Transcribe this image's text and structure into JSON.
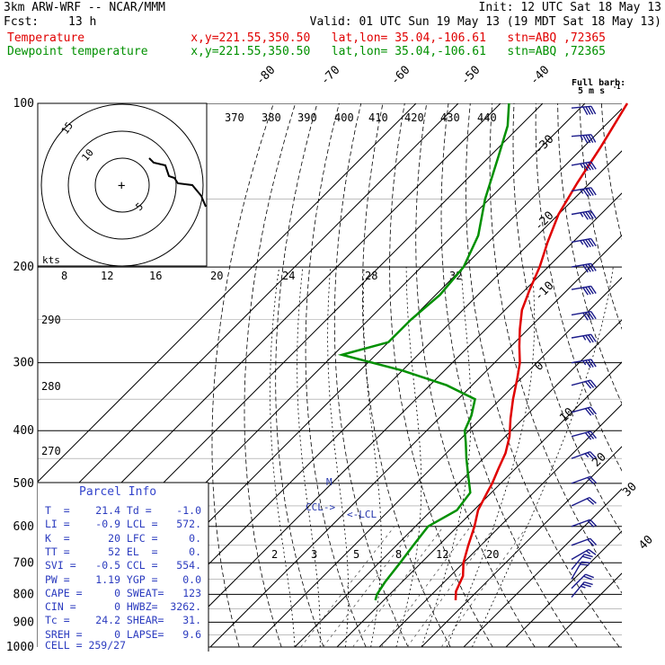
{
  "header": {
    "model": "3km ARW-WRF -- NCAR/MMM",
    "init": "Init: 12 UTC Sat 18 May 13",
    "fcst_label": "Fcst:",
    "fcst_value": "13 h",
    "valid": "Valid: 01 UTC Sun 19 May 13 (19 MDT Sat 18 May 13)",
    "temp_label": "Temperature",
    "temp_loc": "x,y=221.55,350.50   lat,lon= 35.04,-106.61   stn=ABQ ,72365",
    "dew_label": "Dewpoint temperature",
    "dew_loc": "x,y=221.55,350.50   lat,lon= 35.04,-106.61   stn=ABQ ,72365"
  },
  "legend_barb": {
    "title": "Full barb:",
    "value": "5 m s",
    "exponent": "-1"
  },
  "hodograph": {
    "unit_label": "kts",
    "ring_labels": [
      "5",
      "10",
      "15"
    ],
    "center_marker": "+",
    "points": [
      [
        0.8,
        -3.5
      ],
      [
        2.0,
        -1.5
      ],
      [
        2.5,
        3.0
      ],
      [
        5.0,
        2.0
      ],
      [
        4.2,
        8.0
      ],
      [
        3.0,
        7.5
      ],
      [
        2.5,
        12.0
      ]
    ]
  },
  "parcel_info": {
    "title": "Parcel Info",
    "rows": [
      [
        "T  =",
        "21.4",
        "Td =",
        "-1.0"
      ],
      [
        "LI =",
        "-0.9",
        "LCL =",
        "572."
      ],
      [
        "K  =",
        "20",
        "LFC =",
        "0."
      ],
      [
        "TT =",
        "52",
        "EL  =",
        "0."
      ],
      [
        "SVI =",
        "-0.5",
        "CCL =",
        "554."
      ],
      [
        "PW =",
        "1.19",
        "YGP =",
        "0.0"
      ],
      [
        "CAPE =",
        "0",
        "SWEAT=",
        "123"
      ],
      [
        "CIN =",
        "0",
        "HWBZ=",
        "3262."
      ],
      [
        "Tc =",
        "24.2",
        "SHEAR=",
        "31."
      ],
      [
        "SREH =",
        "0",
        "LAPSE=",
        "9.6"
      ]
    ],
    "cell": "CELL = 259/27"
  },
  "annotations": {
    "ccl": "CCL",
    "lcl": "LCL",
    "marker_m": "M"
  },
  "chart_data": {
    "type": "line",
    "chart_kind": "Skew-T log-P sounding",
    "y_axis": {
      "name": "pressure",
      "scale": "log",
      "ylim": [
        1000,
        100
      ]
    },
    "pressure_labels": [
      "100",
      "200",
      "300",
      "400",
      "500",
      "600",
      "700",
      "800",
      "900",
      "1000"
    ],
    "isotherm_labels": [
      "-80",
      "-70",
      "-60",
      "-50",
      "-40",
      "-30",
      "-20",
      "-10",
      "0",
      "10",
      "20",
      "30",
      "40"
    ],
    "theta_e_labels": [
      "370",
      "380",
      "390",
      "400",
      "410",
      "420",
      "430",
      "440"
    ],
    "theta_labels": [
      "290",
      "280",
      "270"
    ],
    "mixing_ratio_upper_labels": [
      "8",
      "12",
      "16",
      "20",
      "24",
      "28",
      "32"
    ],
    "mixing_ratio_lower_labels": [
      "2",
      "3",
      "5",
      "8",
      "12",
      "20"
    ],
    "series": [
      {
        "name": "Temperature",
        "color": "#e00000",
        "points": [
          [
            820,
            17
          ],
          [
            790,
            15
          ],
          [
            740,
            13
          ],
          [
            700,
            10
          ],
          [
            650,
            7
          ],
          [
            600,
            4
          ],
          [
            560,
            1
          ],
          [
            520,
            -1
          ],
          [
            500,
            -2
          ],
          [
            470,
            -4
          ],
          [
            440,
            -6
          ],
          [
            410,
            -9
          ],
          [
            380,
            -13
          ],
          [
            350,
            -17
          ],
          [
            320,
            -21
          ],
          [
            300,
            -24
          ],
          [
            280,
            -28
          ],
          [
            260,
            -32
          ],
          [
            240,
            -36
          ],
          [
            220,
            -39
          ],
          [
            200,
            -42
          ],
          [
            180,
            -46
          ],
          [
            160,
            -50
          ],
          [
            140,
            -53
          ],
          [
            120,
            -56
          ],
          [
            100,
            -60
          ]
        ]
      },
      {
        "name": "Dewpoint temperature",
        "color": "#009000",
        "points": [
          [
            820,
            -2
          ],
          [
            800,
            -3
          ],
          [
            760,
            -4
          ],
          [
            700,
            -5
          ],
          [
            650,
            -6
          ],
          [
            600,
            -7
          ],
          [
            560,
            -4
          ],
          [
            520,
            -5
          ],
          [
            480,
            -10
          ],
          [
            450,
            -14
          ],
          [
            420,
            -18
          ],
          [
            400,
            -21
          ],
          [
            375,
            -23
          ],
          [
            350,
            -26
          ],
          [
            330,
            -36
          ],
          [
            310,
            -50
          ],
          [
            290,
            -68
          ],
          [
            275,
            -60
          ],
          [
            250,
            -60
          ],
          [
            225,
            -59
          ],
          [
            200,
            -60
          ],
          [
            175,
            -64
          ],
          [
            150,
            -71
          ],
          [
            125,
            -78
          ],
          [
            110,
            -83
          ],
          [
            100,
            -88
          ]
        ]
      }
    ],
    "barbs": [
      {
        "p": 810,
        "dir": 220,
        "spd": 14
      },
      {
        "p": 780,
        "dir": 225,
        "spd": 12
      },
      {
        "p": 750,
        "dir": 210,
        "spd": 10
      },
      {
        "p": 720,
        "dir": 220,
        "spd": 12
      },
      {
        "p": 690,
        "dir": 240,
        "spd": 8
      },
      {
        "p": 650,
        "dir": 250,
        "spd": 10
      },
      {
        "p": 600,
        "dir": 250,
        "spd": 12
      },
      {
        "p": 550,
        "dir": 245,
        "spd": 10
      },
      {
        "p": 500,
        "dir": 250,
        "spd": 12
      },
      {
        "p": 450,
        "dir": 250,
        "spd": 14
      },
      {
        "p": 410,
        "dir": 255,
        "spd": 15
      },
      {
        "p": 370,
        "dir": 255,
        "spd": 16
      },
      {
        "p": 330,
        "dir": 255,
        "spd": 17
      },
      {
        "p": 300,
        "dir": 260,
        "spd": 18
      },
      {
        "p": 270,
        "dir": 260,
        "spd": 19
      },
      {
        "p": 245,
        "dir": 260,
        "spd": 20
      },
      {
        "p": 220,
        "dir": 260,
        "spd": 21
      },
      {
        "p": 200,
        "dir": 260,
        "spd": 22
      },
      {
        "p": 180,
        "dir": 260,
        "spd": 23
      },
      {
        "p": 160,
        "dir": 260,
        "spd": 24
      },
      {
        "p": 145,
        "dir": 260,
        "spd": 24
      },
      {
        "p": 130,
        "dir": 260,
        "spd": 24
      },
      {
        "p": 115,
        "dir": 265,
        "spd": 23
      },
      {
        "p": 102,
        "dir": 265,
        "spd": 22
      }
    ]
  }
}
